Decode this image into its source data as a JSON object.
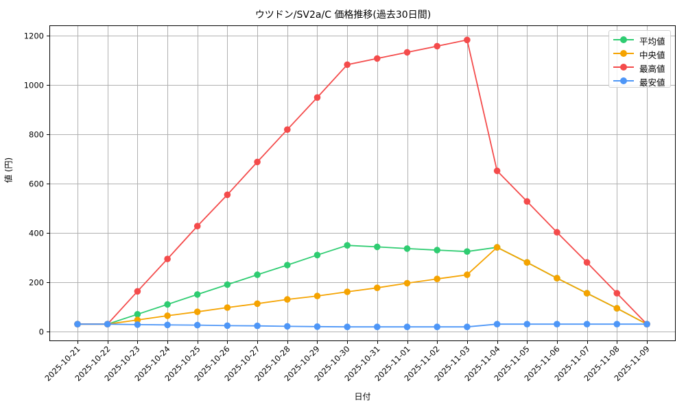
{
  "chart_data": {
    "type": "line",
    "title": "ウツドン/SV2a/C 価格推移(過去30日間)",
    "xlabel": "日付",
    "ylabel": "値 (円)",
    "ylim": [
      -40,
      1280
    ],
    "yticks": [
      0,
      200,
      400,
      600,
      800,
      1000,
      1200
    ],
    "grid": true,
    "legend_position": "upper right",
    "x": [
      "2025-10-21",
      "2025-10-22",
      "2025-10-23",
      "2025-10-24",
      "2025-10-25",
      "2025-10-26",
      "2025-10-27",
      "2025-10-28",
      "2025-10-29",
      "2025-10-30",
      "2025-10-31",
      "2025-11-01",
      "2025-11-02",
      "2025-11-03",
      "2025-11-04",
      "2025-11-05",
      "2025-11-06",
      "2025-11-07",
      "2025-11-08",
      "2025-11-09"
    ],
    "series": [
      {
        "name": "平均値",
        "color": "#2ecc71",
        "values": [
          30,
          30,
          70,
          110,
          150,
          190,
          230,
          269,
          310,
          349,
          343,
          336,
          330,
          324,
          341,
          280,
          216,
          155,
          94,
          30
        ]
      },
      {
        "name": "中央値",
        "color": "#f5a300",
        "values": [
          30,
          30,
          47,
          64,
          80,
          97,
          113,
          130,
          144,
          161,
          177,
          196,
          213,
          230,
          341,
          280,
          216,
          155,
          94,
          30
        ]
      },
      {
        "name": "最高値",
        "color": "#f44b4b",
        "values": [
          30,
          30,
          163,
          294,
          427,
          554,
          687,
          818,
          948,
          1081,
          1106,
          1131,
          1156,
          1181,
          651,
          527,
          402,
          280,
          155,
          30
        ]
      },
      {
        "name": "最安値",
        "color": "#4d96f7",
        "values": [
          30,
          30,
          28,
          27,
          26,
          24,
          23,
          21,
          20,
          19,
          19,
          19,
          19,
          19,
          30,
          30,
          30,
          30,
          30,
          30
        ]
      }
    ]
  },
  "legend": {
    "items": [
      {
        "label": "平均値",
        "color": "#2ecc71"
      },
      {
        "label": "中央値",
        "color": "#f5a300"
      },
      {
        "label": "最高値",
        "color": "#f44b4b"
      },
      {
        "label": "最安値",
        "color": "#4d96f7"
      }
    ]
  }
}
